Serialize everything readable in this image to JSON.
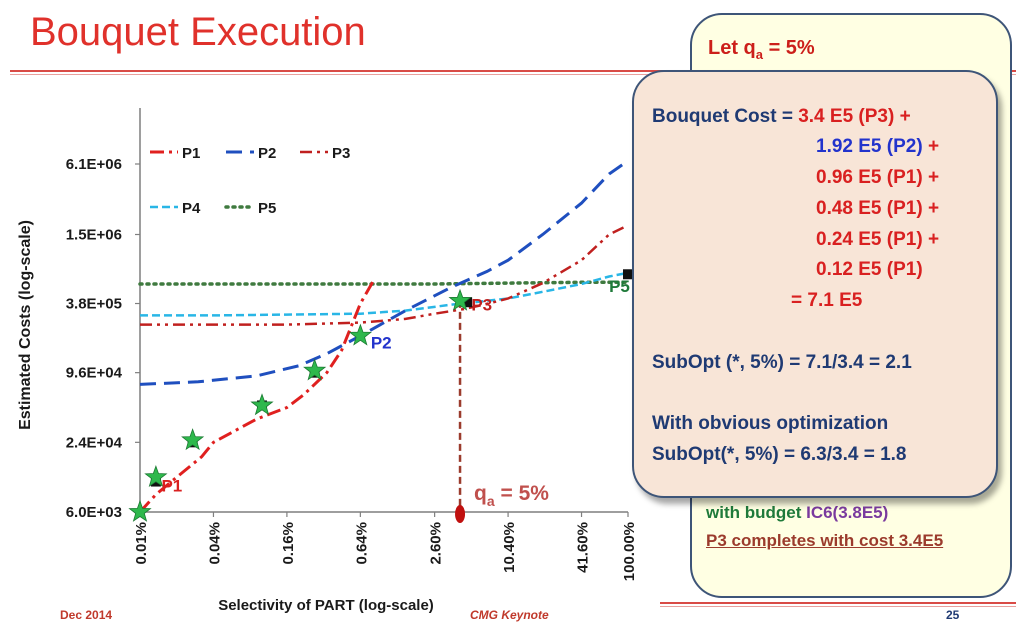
{
  "slide": {
    "title": "Bouquet Execution",
    "footer_left": "Dec 2014",
    "footer_mid": "CMG Keynote",
    "page_number": "25"
  },
  "back_card": {
    "head_prefix": "Let q",
    "head_sub": "a",
    "head_suffix": " = 5%",
    "line1_a": "with budget ",
    "line1_b": "IC6(3.8E5)",
    "line2": "P3 completes with cost 3.4E5"
  },
  "front_card": {
    "cost_label": "Bouquet Cost = ",
    "r1_val": "3.4   E5 (P3)",
    "r1_op": " +",
    "r2_val": "1.92   E5 (P2)",
    "r2_op": " +",
    "r3": "0.96 E5 (P1) +",
    "r4": "0.48 E5 (P1) +",
    "r5": "0.24 E5 (P1) +",
    "r6": "0.12 E5 (P1)",
    "total": "=  7.1  E5",
    "subopt": "SubOpt (*, 5%) =  7.1/3.4 = 2.1",
    "obvious_heading": "With obvious optimization",
    "obvious_subopt": "SubOpt(*, 5%) = 6.3/3.4 = 1.8"
  },
  "colors": {
    "p1": "#e0201f",
    "p2": "#1f4fbf",
    "p3": "#c0201f",
    "p4": "#29b6e6",
    "p5": "#3f7a3f",
    "star": "#2eb84c",
    "qa": "#9b3b2c"
  },
  "chart_data": {
    "type": "line",
    "xlabel": "Selectivity of PART (log-scale)",
    "ylabel": "Estimated Costs (log-scale)",
    "x_ticks": [
      "0.01%",
      "0.04%",
      "0.16%",
      "0.64%",
      "2.60%",
      "10.40%",
      "41.60%",
      "100.00%"
    ],
    "y_ticks": [
      "6.0E+03",
      "2.4E+04",
      "9.6E+04",
      "3.8E+05",
      "1.5E+06",
      "6.1E+06"
    ],
    "legend": [
      "P1",
      "P2",
      "P3",
      "P4",
      "P5"
    ],
    "series": [
      {
        "name": "P1",
        "x": [
          0.01,
          0.0135,
          0.02,
          0.032,
          0.04,
          0.09,
          0.16,
          0.22,
          0.34,
          0.45,
          0.64,
          0.82
        ],
        "y": [
          6000,
          8500,
          12000,
          18000,
          24000,
          38000,
          48000,
          62000,
          96000,
          150000,
          380000,
          600000
        ]
      },
      {
        "name": "P2",
        "x": [
          0.01,
          0.03,
          0.09,
          0.2,
          0.34,
          0.64,
          1.5,
          3.5,
          7,
          10.4,
          20,
          41.6,
          70,
          100
        ],
        "y": [
          76000,
          80000,
          90000,
          110000,
          140000,
          200000,
          330000,
          520000,
          720000,
          900000,
          1500000,
          2800000,
          5000000,
          6500000
        ]
      },
      {
        "name": "P3",
        "x": [
          0.01,
          0.04,
          0.16,
          0.64,
          1.5,
          2.6,
          4.5,
          6.5,
          10.4,
          20,
          41.6,
          70,
          100
        ],
        "y": [
          250000,
          250000,
          250000,
          260000,
          280000,
          310000,
          340000,
          370000,
          420000,
          570000,
          900000,
          1500000,
          1800000
        ]
      },
      {
        "name": "P4",
        "x": [
          0.01,
          0.04,
          0.16,
          0.64,
          1.5,
          3.5,
          10.4,
          20,
          41.6,
          70,
          100
        ],
        "y": [
          300000,
          300000,
          305000,
          310000,
          330000,
          370000,
          420000,
          480000,
          560000,
          650000,
          700000
        ]
      },
      {
        "name": "P5",
        "x": [
          0.01,
          0.04,
          0.16,
          0.64,
          2.6,
          10.4,
          41.6,
          100
        ],
        "y": [
          560000,
          560000,
          560000,
          560000,
          560000,
          570000,
          580000,
          580000
        ]
      }
    ],
    "star_points": {
      "x": [
        0.01,
        0.0135,
        0.027,
        0.1,
        0.27,
        0.64,
        4.2
      ],
      "y": [
        6000,
        12000,
        25000,
        50000,
        100000,
        200000,
        400000
      ]
    },
    "square_markers": {
      "x": [
        0.0135,
        0.027,
        0.1,
        0.27,
        4.8,
        100
      ],
      "y": [
        11000,
        24000,
        50000,
        96000,
        390000,
        680000
      ]
    },
    "plan_labels": [
      {
        "text": "P1",
        "x": 0.015,
        "y": 9000
      },
      {
        "text": "P2",
        "x": 0.78,
        "y": 155000
      },
      {
        "text": "P3",
        "x": 5.2,
        "y": 330000
      },
      {
        "text": "P5",
        "x": 70,
        "y": 480000
      }
    ],
    "query_location": {
      "label_base": "q",
      "label_sub": "a",
      "label_suffix": " = 5%",
      "x": 4.2,
      "y_top": 400000
    }
  }
}
